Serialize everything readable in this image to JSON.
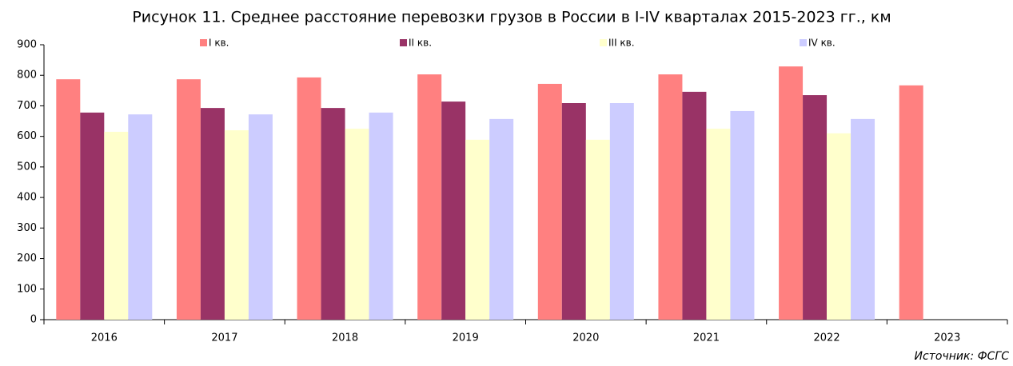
{
  "chart_data": {
    "type": "bar",
    "title": "Рисунок 11. Среднее расстояние перевозки грузов в России в I-IV кварталах 2015-2023  гг., км",
    "source": "Источник: ФСГС",
    "categories": [
      "2016",
      "2017",
      "2018",
      "2019",
      "2020",
      "2021",
      "2022",
      "2023"
    ],
    "series": [
      {
        "name": "I кв.",
        "color": "#ff8080",
        "values": [
          787,
          787,
          793,
          803,
          772,
          803,
          829,
          767
        ]
      },
      {
        "name": "II кв.",
        "color": "#993366",
        "values": [
          678,
          693,
          693,
          714,
          709,
          746,
          735,
          null
        ]
      },
      {
        "name": "III кв.",
        "color": "#ffffcc",
        "values": [
          615,
          620,
          625,
          589,
          589,
          625,
          610,
          null
        ]
      },
      {
        "name": "IV кв.",
        "color": "#ccccff",
        "values": [
          672,
          672,
          678,
          657,
          709,
          683,
          657,
          null
        ]
      }
    ],
    "ylim": [
      0,
      900
    ],
    "yticks": [
      0,
      100,
      200,
      300,
      400,
      500,
      600,
      700,
      800,
      900
    ],
    "grid": false
  }
}
